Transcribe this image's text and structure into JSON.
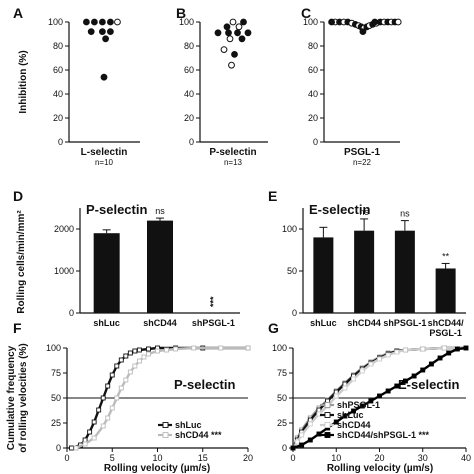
{
  "chart_data": [
    {
      "panel": "A",
      "type": "scatter",
      "ylabel": "Inhibition (%)",
      "ylim": [
        0,
        100
      ],
      "yticks": [
        0,
        20,
        40,
        60,
        80,
        100
      ],
      "xlabel": "L-selectin",
      "caption": "n=10",
      "points": [
        {
          "x": -0.55,
          "y": 100,
          "filled": true
        },
        {
          "x": -0.3,
          "y": 100,
          "filled": true
        },
        {
          "x": -0.05,
          "y": 100,
          "filled": true
        },
        {
          "x": 0.2,
          "y": 100,
          "filled": true
        },
        {
          "x": 0.42,
          "y": 100,
          "filled": false
        },
        {
          "x": -0.4,
          "y": 92,
          "filled": true
        },
        {
          "x": -0.05,
          "y": 92,
          "filled": true
        },
        {
          "x": 0.2,
          "y": 92,
          "filled": true
        },
        {
          "x": 0.05,
          "y": 86,
          "filled": true
        },
        {
          "x": 0.0,
          "y": 54,
          "filled": true
        }
      ]
    },
    {
      "panel": "B",
      "type": "scatter",
      "ylim": [
        0,
        100
      ],
      "yticks": [
        0,
        20,
        40,
        60,
        80,
        100
      ],
      "xlabel": "P-selectin",
      "caption": "n=13",
      "points": [
        {
          "x": 0.0,
          "y": 100,
          "filled": false
        },
        {
          "x": 0.35,
          "y": 100,
          "filled": true
        },
        {
          "x": -0.2,
          "y": 96,
          "filled": true
        },
        {
          "x": 0.2,
          "y": 96,
          "filled": false
        },
        {
          "x": -0.5,
          "y": 91,
          "filled": true
        },
        {
          "x": -0.15,
          "y": 91,
          "filled": true
        },
        {
          "x": 0.15,
          "y": 91,
          "filled": true
        },
        {
          "x": 0.5,
          "y": 91,
          "filled": true
        },
        {
          "x": -0.1,
          "y": 86,
          "filled": false
        },
        {
          "x": 0.3,
          "y": 86,
          "filled": true
        },
        {
          "x": -0.3,
          "y": 77,
          "filled": false
        },
        {
          "x": 0.05,
          "y": 73,
          "filled": true
        },
        {
          "x": -0.05,
          "y": 64,
          "filled": false
        }
      ]
    },
    {
      "panel": "C",
      "type": "scatter",
      "ylim": [
        0,
        100
      ],
      "yticks": [
        0,
        20,
        40,
        60,
        80,
        100
      ],
      "xlabel": "PSGL-1",
      "caption": "n=22",
      "points": [
        {
          "x": -0.8,
          "y": 100,
          "filled": false
        },
        {
          "x": -0.68,
          "y": 100,
          "filled": true
        },
        {
          "x": -0.56,
          "y": 100,
          "filled": false
        },
        {
          "x": -0.45,
          "y": 100,
          "filled": true
        },
        {
          "x": -0.34,
          "y": 99,
          "filled": false
        },
        {
          "x": -0.24,
          "y": 98,
          "filled": true
        },
        {
          "x": -0.15,
          "y": 97,
          "filled": false
        },
        {
          "x": -0.08,
          "y": 96,
          "filled": true
        },
        {
          "x": 0.0,
          "y": 95,
          "filled": false
        },
        {
          "x": -0.03,
          "y": 92,
          "filled": true
        },
        {
          "x": 0.08,
          "y": 96,
          "filled": true
        },
        {
          "x": 0.15,
          "y": 97,
          "filled": false
        },
        {
          "x": 0.24,
          "y": 98,
          "filled": true
        },
        {
          "x": 0.34,
          "y": 99,
          "filled": false
        },
        {
          "x": 0.45,
          "y": 100,
          "filled": true
        },
        {
          "x": 0.56,
          "y": 100,
          "filled": false
        },
        {
          "x": 0.66,
          "y": 100,
          "filled": true
        },
        {
          "x": 0.76,
          "y": 100,
          "filled": false
        },
        {
          "x": 0.86,
          "y": 100,
          "filled": true
        },
        {
          "x": -0.9,
          "y": 100,
          "filled": true
        },
        {
          "x": 0.95,
          "y": 100,
          "filled": false
        },
        {
          "x": 0.3,
          "y": 100,
          "filled": true
        }
      ]
    },
    {
      "panel": "D",
      "type": "bar",
      "title": "P-selectin",
      "ylabel": "Rolling cells/min/mm²",
      "ylim": [
        0,
        2500
      ],
      "yticks": [
        0,
        1000,
        2000
      ],
      "categories": [
        "shLuc",
        "shCD44",
        "shPSGL-1"
      ],
      "values": [
        1900,
        2200,
        0
      ],
      "errors": [
        80,
        60,
        0
      ],
      "annotations": [
        "",
        "ns",
        "***"
      ]
    },
    {
      "panel": "E",
      "type": "bar",
      "title": "E-selectin",
      "ylim": [
        0,
        125
      ],
      "yticks": [
        0,
        50,
        100
      ],
      "categories": [
        "shLuc",
        "shCD44",
        "shPSGL-1",
        "shCD44/ PSGL-1"
      ],
      "values": [
        90,
        98,
        98,
        53
      ],
      "errors": [
        12,
        14,
        12,
        6
      ],
      "annotations": [
        "",
        "ns",
        "ns",
        "**"
      ]
    },
    {
      "panel": "F",
      "type": "line",
      "title": "P-selectin",
      "xlabel": "Rolling velocity (µm/s)",
      "ylabel": "Cumulative frequency of rolling velocities (%)",
      "xlim": [
        0,
        20
      ],
      "ylim": [
        0,
        100
      ],
      "xticks": [
        0,
        5,
        10,
        15,
        20
      ],
      "yticks": [
        0,
        25,
        50,
        75,
        100
      ],
      "reference_y": 50,
      "legend": [
        "shLuc",
        "shCD44 ***"
      ],
      "series": [
        {
          "name": "shLuc",
          "color": "#111111",
          "marker": "open-square",
          "x": [
            0.5,
            1.5,
            2,
            2.5,
            3,
            3.5,
            4,
            4.5,
            5,
            5.5,
            6,
            6.5,
            7,
            7.5,
            8,
            9,
            10,
            12,
            15,
            20
          ],
          "y": [
            0,
            3,
            8,
            16,
            26,
            38,
            50,
            62,
            73,
            82,
            88,
            92,
            95,
            97,
            98,
            99,
            100,
            100,
            100,
            100
          ]
        },
        {
          "name": "shCD44 ***",
          "color": "#bbbbbb",
          "marker": "open-square",
          "x": [
            1,
            2,
            3,
            4,
            4.5,
            5,
            5.5,
            6,
            6.5,
            7,
            7.5,
            8,
            8.5,
            9,
            10,
            11,
            12,
            14,
            17,
            20
          ],
          "y": [
            0,
            4,
            10,
            22,
            30,
            40,
            50,
            60,
            68,
            76,
            82,
            87,
            91,
            94,
            97,
            98,
            99,
            100,
            100,
            100
          ]
        }
      ]
    },
    {
      "panel": "G",
      "type": "line",
      "title": "E-selectin",
      "xlabel": "Rolling velocity (µm/s)",
      "xlim": [
        0,
        40
      ],
      "ylim": [
        0,
        100
      ],
      "xticks": [
        0,
        10,
        20,
        30,
        40
      ],
      "yticks": [
        0,
        25,
        50,
        75,
        100
      ],
      "reference_y": 50,
      "legend": [
        "shPSGL-1",
        "shLuc",
        "shCD44",
        "shCD44/shPSGL-1 ***"
      ],
      "series": [
        {
          "name": "shPSGL-1",
          "color": "#999999",
          "marker": "open-square",
          "x": [
            0,
            1,
            2,
            4,
            6,
            8,
            10,
            12,
            14,
            16,
            18,
            20,
            22,
            24,
            26,
            30,
            35,
            40
          ],
          "y": [
            0,
            10,
            18,
            30,
            40,
            48,
            57,
            65,
            73,
            80,
            86,
            91,
            95,
            97,
            98,
            99,
            100,
            100
          ]
        },
        {
          "name": "shLuc",
          "color": "#111111",
          "marker": "open-square",
          "x": [
            0,
            1,
            2,
            4,
            6,
            8,
            10,
            12,
            14,
            16,
            18,
            20,
            22,
            24,
            26,
            30,
            35,
            40
          ],
          "y": [
            0,
            8,
            16,
            28,
            38,
            47,
            56,
            64,
            72,
            79,
            85,
            90,
            94,
            97,
            98,
            99,
            100,
            100
          ]
        },
        {
          "name": "shCD44",
          "color": "#cccccc",
          "marker": "open-square",
          "x": [
            0,
            1,
            2,
            4,
            6,
            8,
            10,
            12,
            14,
            16,
            18,
            20,
            22,
            24,
            26,
            30,
            35,
            40
          ],
          "y": [
            0,
            6,
            13,
            24,
            34,
            42,
            52,
            60,
            69,
            77,
            84,
            89,
            93,
            96,
            98,
            99,
            100,
            100
          ]
        },
        {
          "name": "shCD44/shPSGL-1 ***",
          "color": "#000000",
          "marker": "filled-square",
          "x": [
            0,
            2,
            4,
            6,
            8,
            10,
            12,
            14,
            16,
            18,
            20,
            22,
            24,
            26,
            28,
            30,
            32,
            34,
            36,
            38,
            40
          ],
          "y": [
            0,
            3,
            8,
            14,
            20,
            26,
            32,
            37,
            42,
            47,
            52,
            57,
            62,
            67,
            72,
            78,
            84,
            90,
            95,
            99,
            100
          ]
        }
      ]
    }
  ]
}
